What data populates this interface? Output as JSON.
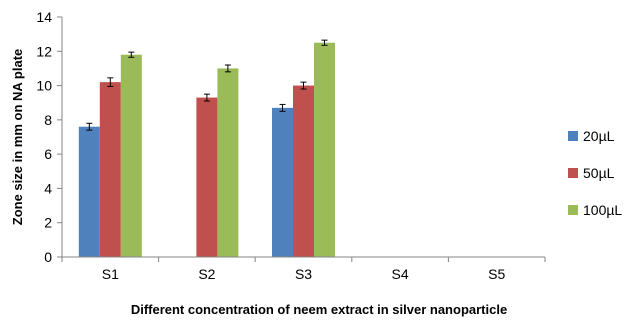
{
  "chart_data": {
    "type": "bar",
    "title": "",
    "xlabel": "Different concentration of neem extract in silver nanoparticle",
    "ylabel": "Zone size in mm on NA plate",
    "ylim": [
      0,
      14
    ],
    "yticks": [
      "0",
      "2",
      "4",
      "6",
      "8",
      "10",
      "12",
      "14"
    ],
    "categories": [
      "S1",
      "S2",
      "S3",
      "S4",
      "S5"
    ],
    "series": [
      {
        "name": "20µL",
        "color": "#4f81bd",
        "values": [
          7.6,
          0,
          8.7,
          0,
          0
        ],
        "errors": [
          0.2,
          0,
          0.2,
          0,
          0
        ]
      },
      {
        "name": "50µL",
        "color": "#c0504d",
        "values": [
          10.2,
          9.3,
          10.0,
          0,
          0
        ],
        "errors": [
          0.25,
          0.2,
          0.2,
          0,
          0
        ]
      },
      {
        "name": "100µL",
        "color": "#9bbb59",
        "values": [
          11.8,
          11.0,
          12.5,
          0,
          0
        ],
        "errors": [
          0.15,
          0.2,
          0.15,
          0,
          0
        ]
      }
    ],
    "grid": false,
    "legend": "right"
  }
}
